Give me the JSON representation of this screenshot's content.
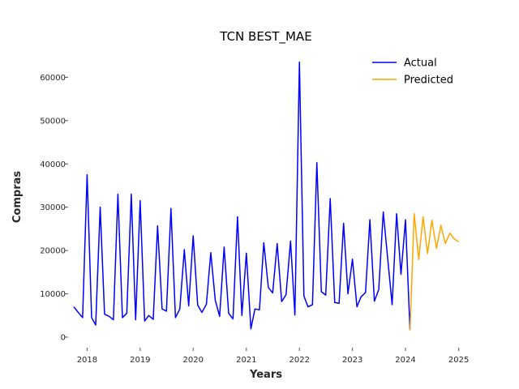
{
  "chart_data": {
    "type": "line",
    "title": "TCN BEST_MAE",
    "xlabel": "Years",
    "ylabel": "Compras",
    "x_tick_labels": [
      "2018",
      "2019",
      "2020",
      "2021",
      "2022",
      "2023",
      "2024",
      "2025"
    ],
    "y_tick_labels": [
      "0",
      "10000",
      "20000",
      "30000",
      "40000",
      "50000",
      "60000"
    ],
    "y_ticks": [
      0,
      10000,
      20000,
      30000,
      40000,
      50000,
      60000
    ],
    "xlim": [
      "2017-08-01",
      "2025-02-28"
    ],
    "ylim": [
      -3000,
      67000
    ],
    "grid": false,
    "legend_position": "top-right",
    "series": [
      {
        "name": "Actual",
        "color": "#0000ff",
        "points": [
          [
            "2017-10",
            7000
          ],
          [
            "2017-11",
            5700
          ],
          [
            "2017-12",
            4500
          ],
          [
            "2018-01",
            37500
          ],
          [
            "2018-02",
            4500
          ],
          [
            "2018-03",
            2800
          ],
          [
            "2018-04",
            30000
          ],
          [
            "2018-05",
            5300
          ],
          [
            "2018-06",
            4800
          ],
          [
            "2018-07",
            4000
          ],
          [
            "2018-08",
            33000
          ],
          [
            "2018-09",
            4500
          ],
          [
            "2018-10",
            5500
          ],
          [
            "2018-11",
            33000
          ],
          [
            "2018-12",
            4000
          ],
          [
            "2019-01",
            31500
          ],
          [
            "2019-02",
            3700
          ],
          [
            "2019-03",
            5000
          ],
          [
            "2019-04",
            4100
          ],
          [
            "2019-05",
            25700
          ],
          [
            "2019-06",
            6500
          ],
          [
            "2019-07",
            6000
          ],
          [
            "2019-08",
            29700
          ],
          [
            "2019-09",
            4500
          ],
          [
            "2019-10",
            6500
          ],
          [
            "2019-11",
            20200
          ],
          [
            "2019-12",
            7200
          ],
          [
            "2020-01",
            23400
          ],
          [
            "2020-02",
            7400
          ],
          [
            "2020-03",
            5700
          ],
          [
            "2020-04",
            7600
          ],
          [
            "2020-05",
            19500
          ],
          [
            "2020-06",
            8500
          ],
          [
            "2020-07",
            4800
          ],
          [
            "2020-08",
            20800
          ],
          [
            "2020-09",
            5500
          ],
          [
            "2020-10",
            4200
          ],
          [
            "2020-11",
            27800
          ],
          [
            "2020-12",
            5000
          ],
          [
            "2021-01",
            19400
          ],
          [
            "2021-02",
            1900
          ],
          [
            "2021-03",
            6500
          ],
          [
            "2021-04",
            6300
          ],
          [
            "2021-05",
            21800
          ],
          [
            "2021-06",
            11500
          ],
          [
            "2021-07",
            10200
          ],
          [
            "2021-08",
            21600
          ],
          [
            "2021-09",
            8200
          ],
          [
            "2021-10",
            9800
          ],
          [
            "2021-11",
            22200
          ],
          [
            "2021-12",
            5100
          ],
          [
            "2022-01",
            63500
          ],
          [
            "2022-02",
            9500
          ],
          [
            "2022-03",
            7000
          ],
          [
            "2022-04",
            7500
          ],
          [
            "2022-05",
            40300
          ],
          [
            "2022-06",
            10500
          ],
          [
            "2022-07",
            9700
          ],
          [
            "2022-08",
            32000
          ],
          [
            "2022-09",
            8000
          ],
          [
            "2022-10",
            7800
          ],
          [
            "2022-11",
            26300
          ],
          [
            "2022-12",
            10000
          ],
          [
            "2023-01",
            18000
          ],
          [
            "2023-02",
            7000
          ],
          [
            "2023-03",
            9300
          ],
          [
            "2023-04",
            10300
          ],
          [
            "2023-05",
            27100
          ],
          [
            "2023-06",
            8300
          ],
          [
            "2023-07",
            11000
          ],
          [
            "2023-08",
            28900
          ],
          [
            "2023-09",
            18000
          ],
          [
            "2023-10",
            7500
          ],
          [
            "2023-11",
            28500
          ],
          [
            "2023-12",
            14500
          ],
          [
            "2024-01",
            27100
          ],
          [
            "2024-02",
            1600
          ]
        ]
      },
      {
        "name": "Predicted",
        "color": "#ffa500",
        "points": [
          [
            "2024-02",
            1600
          ],
          [
            "2024-03",
            28500
          ],
          [
            "2024-04",
            17900
          ],
          [
            "2024-05",
            27800
          ],
          [
            "2024-06",
            19300
          ],
          [
            "2024-07",
            27000
          ],
          [
            "2024-08",
            20500
          ],
          [
            "2024-09",
            25800
          ],
          [
            "2024-10",
            21600
          ],
          [
            "2024-11",
            24000
          ],
          [
            "2024-12",
            22700
          ],
          [
            "2025-01",
            22000
          ]
        ]
      }
    ]
  }
}
